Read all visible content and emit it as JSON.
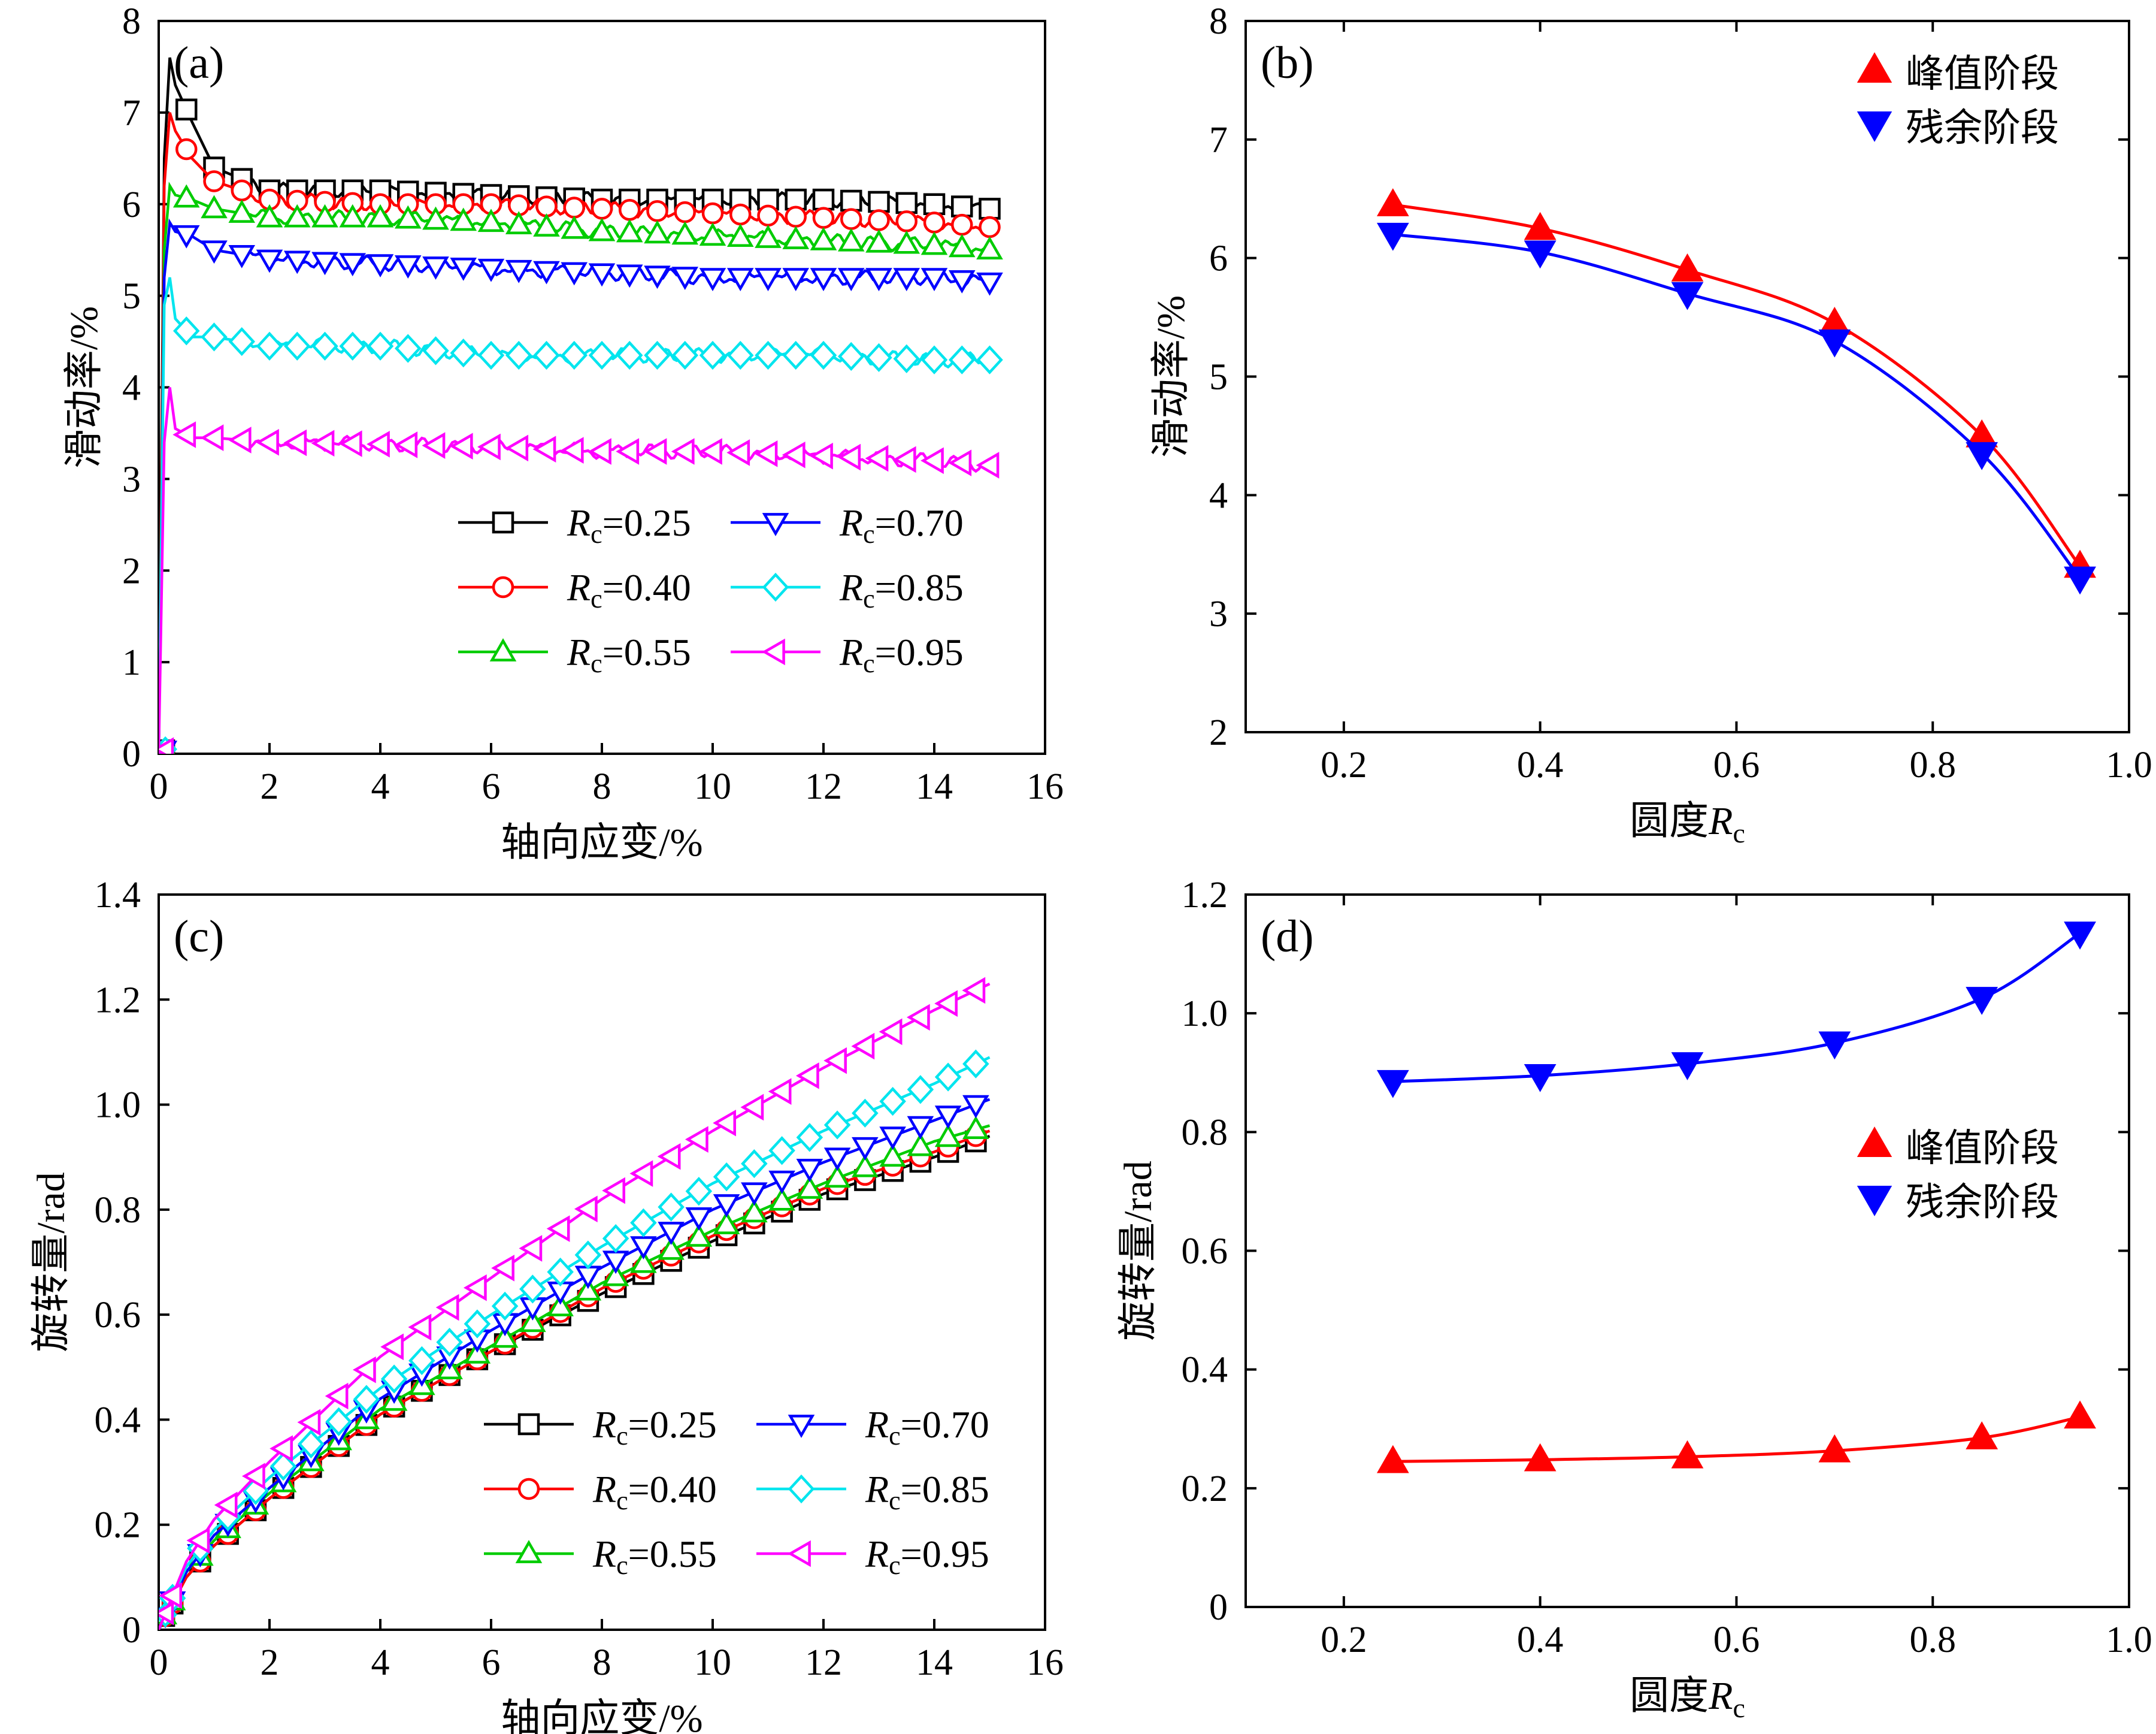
{
  "figure": {
    "panels": [
      "(a)",
      "(b)",
      "(c)",
      "(d)"
    ]
  },
  "series_styles": [
    {
      "name": "Rc=0.25",
      "var": "R",
      "sub": "c",
      "eq": "=0.25",
      "color": "#000000",
      "marker": "square"
    },
    {
      "name": "Rc=0.40",
      "var": "R",
      "sub": "c",
      "eq": "=0.40",
      "color": "#ff0000",
      "marker": "circle"
    },
    {
      "name": "Rc=0.55",
      "var": "R",
      "sub": "c",
      "eq": "=0.55",
      "color": "#00cc00",
      "marker": "triangle-up"
    },
    {
      "name": "Rc=0.70",
      "var": "R",
      "sub": "c",
      "eq": "=0.70",
      "color": "#0000ff",
      "marker": "triangle-down"
    },
    {
      "name": "Rc=0.85",
      "var": "R",
      "sub": "c",
      "eq": "=0.85",
      "color": "#00e5ee",
      "marker": "diamond"
    },
    {
      "name": "Rc=0.95",
      "var": "R",
      "sub": "c",
      "eq": "=0.95",
      "color": "#ff00ff",
      "marker": "triangle-left"
    }
  ],
  "chart_data": [
    {
      "panel": "(a)",
      "type": "line",
      "xlabel": "轴向应变/%",
      "ylabel": "滑动率/%",
      "xlim": [
        0,
        16
      ],
      "ylim": [
        0,
        8
      ],
      "xticks": [
        0,
        2,
        4,
        6,
        8,
        10,
        12,
        14,
        16
      ],
      "yticks": [
        0,
        1,
        2,
        3,
        4,
        5,
        6,
        7,
        8
      ],
      "legend_position": "bottom-center",
      "series": [
        {
          "name": "Rc=0.25",
          "x": [
            0,
            0.1,
            0.2,
            0.3,
            0.6,
            1,
            2,
            4,
            6,
            8,
            10,
            12,
            14,
            15
          ],
          "y": [
            0,
            6.5,
            7.6,
            7.3,
            6.9,
            6.4,
            6.15,
            6.15,
            6.1,
            6.05,
            6.05,
            6.05,
            6.0,
            5.95
          ]
        },
        {
          "name": "Rc=0.40",
          "x": [
            0,
            0.1,
            0.2,
            0.3,
            0.6,
            1,
            2,
            4,
            6,
            8,
            10,
            12,
            14,
            15
          ],
          "y": [
            0,
            6.2,
            7.0,
            6.8,
            6.5,
            6.25,
            6.05,
            6.0,
            6.0,
            5.95,
            5.9,
            5.85,
            5.8,
            5.75
          ]
        },
        {
          "name": "Rc=0.55",
          "x": [
            0,
            0.1,
            0.2,
            0.3,
            0.6,
            1,
            2,
            4,
            6,
            8,
            10,
            12,
            14,
            15
          ],
          "y": [
            0,
            5.5,
            6.2,
            6.1,
            6.05,
            5.95,
            5.85,
            5.85,
            5.8,
            5.7,
            5.65,
            5.6,
            5.55,
            5.5
          ]
        },
        {
          "name": "Rc=0.70",
          "x": [
            0,
            0.1,
            0.2,
            0.3,
            0.6,
            1,
            2,
            4,
            6,
            8,
            10,
            12,
            14,
            15
          ],
          "y": [
            0,
            5.2,
            5.8,
            5.7,
            5.65,
            5.5,
            5.4,
            5.35,
            5.3,
            5.25,
            5.2,
            5.2,
            5.2,
            5.15
          ]
        },
        {
          "name": "Rc=0.85",
          "x": [
            0,
            0.1,
            0.2,
            0.3,
            0.6,
            1,
            2,
            4,
            6,
            8,
            10,
            12,
            14,
            15
          ],
          "y": [
            0,
            4.9,
            5.2,
            4.75,
            4.55,
            4.55,
            4.45,
            4.45,
            4.35,
            4.35,
            4.35,
            4.35,
            4.3,
            4.3
          ]
        },
        {
          "name": "Rc=0.95",
          "x": [
            0,
            0.1,
            0.2,
            0.3,
            0.6,
            1,
            2,
            4,
            6,
            8,
            10,
            12,
            14,
            15
          ],
          "y": [
            0,
            3.4,
            4.0,
            3.55,
            3.45,
            3.45,
            3.4,
            3.38,
            3.35,
            3.3,
            3.3,
            3.25,
            3.2,
            3.15
          ]
        }
      ]
    },
    {
      "panel": "(b)",
      "type": "scatter",
      "xlabel": "圆度",
      "xlabel_var": "R",
      "xlabel_sub": "c",
      "ylabel": "滑动率/%",
      "xlim": [
        0.1,
        1.0
      ],
      "ylim": [
        2,
        8
      ],
      "xticks": [
        0.2,
        0.4,
        0.6,
        0.8,
        1.0
      ],
      "yticks": [
        2,
        3,
        4,
        5,
        6,
        7,
        8
      ],
      "legend_position": "top-right",
      "series": [
        {
          "name": "峰值阶段",
          "color": "#ff0000",
          "marker": "triangle-up",
          "x": [
            0.25,
            0.4,
            0.55,
            0.7,
            0.85,
            0.95
          ],
          "y": [
            6.45,
            6.25,
            5.9,
            5.45,
            4.5,
            3.4
          ]
        },
        {
          "name": "残余阶段",
          "color": "#0000ff",
          "marker": "triangle-down",
          "x": [
            0.25,
            0.4,
            0.55,
            0.7,
            0.85,
            0.95
          ],
          "y": [
            6.2,
            6.05,
            5.7,
            5.3,
            4.35,
            3.3
          ]
        }
      ]
    },
    {
      "panel": "(c)",
      "type": "line",
      "xlabel": "轴向应变/%",
      "ylabel": "旋转量/rad",
      "xlim": [
        0,
        16
      ],
      "ylim": [
        0,
        1.4
      ],
      "xticks": [
        0,
        2,
        4,
        6,
        8,
        10,
        12,
        14,
        16
      ],
      "yticks": [
        0,
        0.2,
        0.4,
        0.6,
        0.8,
        1.0,
        1.2,
        1.4
      ],
      "legend_position": "bottom-right",
      "series": [
        {
          "name": "Rc=0.25",
          "x": [
            0,
            0.5,
            1,
            2,
            4,
            6,
            8,
            10,
            12,
            14,
            15
          ],
          "y": [
            0,
            0.1,
            0.16,
            0.25,
            0.41,
            0.53,
            0.64,
            0.74,
            0.83,
            0.9,
            0.94
          ]
        },
        {
          "name": "Rc=0.40",
          "x": [
            0,
            0.5,
            1,
            2,
            4,
            6,
            8,
            10,
            12,
            14,
            15
          ],
          "y": [
            0,
            0.1,
            0.16,
            0.25,
            0.41,
            0.53,
            0.65,
            0.75,
            0.84,
            0.91,
            0.95
          ]
        },
        {
          "name": "Rc=0.55",
          "x": [
            0,
            0.5,
            1,
            2,
            4,
            6,
            8,
            10,
            12,
            14,
            15
          ],
          "y": [
            0,
            0.11,
            0.17,
            0.26,
            0.42,
            0.54,
            0.66,
            0.76,
            0.85,
            0.93,
            0.96
          ]
        },
        {
          "name": "Rc=0.70",
          "x": [
            0,
            0.5,
            1,
            2,
            4,
            6,
            8,
            10,
            12,
            14,
            15
          ],
          "y": [
            0,
            0.11,
            0.18,
            0.27,
            0.44,
            0.57,
            0.69,
            0.8,
            0.89,
            0.97,
            1.01
          ]
        },
        {
          "name": "Rc=0.85",
          "x": [
            0,
            0.5,
            1,
            2,
            4,
            6,
            8,
            10,
            12,
            14,
            15
          ],
          "y": [
            0,
            0.12,
            0.19,
            0.29,
            0.46,
            0.6,
            0.73,
            0.85,
            0.95,
            1.04,
            1.09
          ]
        },
        {
          "name": "Rc=0.95",
          "x": [
            0,
            0.5,
            1,
            2,
            4,
            6,
            8,
            10,
            12,
            14,
            15
          ],
          "y": [
            0,
            0.13,
            0.21,
            0.32,
            0.52,
            0.67,
            0.82,
            0.95,
            1.07,
            1.18,
            1.23
          ]
        }
      ]
    },
    {
      "panel": "(d)",
      "type": "scatter",
      "xlabel": "圆度",
      "xlabel_var": "R",
      "xlabel_sub": "c",
      "ylabel": "旋转量/rad",
      "xlim": [
        0.1,
        1.0
      ],
      "ylim": [
        0,
        1.2
      ],
      "xticks": [
        0.2,
        0.4,
        0.6,
        0.8,
        1.0
      ],
      "yticks": [
        0,
        0.2,
        0.4,
        0.6,
        0.8,
        1.0,
        1.2
      ],
      "legend_position": "center-right",
      "series": [
        {
          "name": "峰值阶段",
          "color": "#ff0000",
          "marker": "triangle-up",
          "x": [
            0.25,
            0.4,
            0.55,
            0.7,
            0.85,
            0.95
          ],
          "y": [
            0.245,
            0.248,
            0.253,
            0.263,
            0.285,
            0.32
          ]
        },
        {
          "name": "残余阶段",
          "color": "#0000ff",
          "marker": "triangle-down",
          "x": [
            0.25,
            0.4,
            0.55,
            0.7,
            0.85,
            0.95
          ],
          "y": [
            0.885,
            0.895,
            0.915,
            0.95,
            1.025,
            1.135
          ]
        }
      ]
    }
  ]
}
